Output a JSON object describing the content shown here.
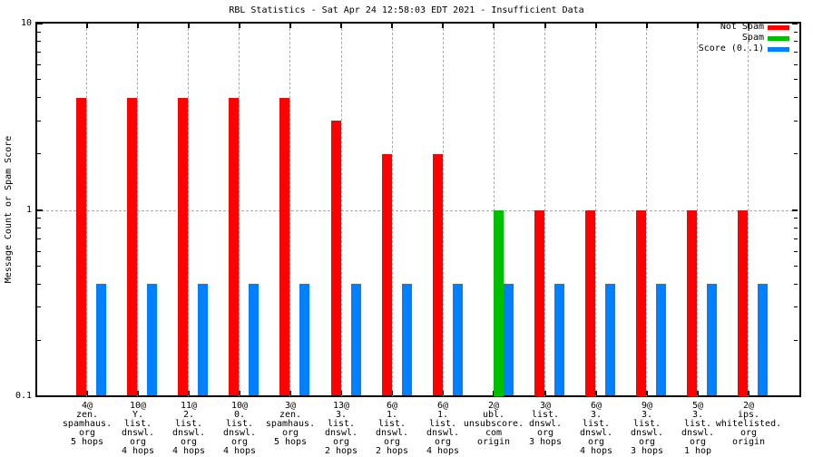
{
  "chart_data": {
    "type": "bar",
    "title": "RBL Statistics - Sat Apr 24 12:58:03 EDT 2021 - Insufficient Data",
    "ylabel": "Message Count or Spam Score",
    "y_scale": "log",
    "ylim": [
      0.1,
      10
    ],
    "y_ticks": [
      {
        "label": "10",
        "value": 10
      },
      {
        "label": "1",
        "value": 1
      },
      {
        "label": "0.1",
        "value": 0.1
      }
    ],
    "y_minor_ticks": [
      0.2,
      0.3,
      0.4,
      0.5,
      0.6,
      0.7,
      0.8,
      0.9,
      2,
      3,
      4,
      5,
      6,
      7,
      8,
      9
    ],
    "grid": true,
    "legend_position": "top-right-inside",
    "categories": [
      [
        "4@",
        "zen.",
        "spamhaus.",
        "org",
        "5 hops"
      ],
      [
        "10@",
        "Y.",
        "list.",
        "dnswl.",
        "org",
        "4 hops"
      ],
      [
        "11@",
        "2.",
        "list.",
        "dnswl.",
        "org",
        "4 hops"
      ],
      [
        "10@",
        "0.",
        "list.",
        "dnswl.",
        "org",
        "4 hops"
      ],
      [
        "3@",
        "zen.",
        "spamhaus.",
        "org",
        "5 hops"
      ],
      [
        "13@",
        "3.",
        "list.",
        "dnswl.",
        "org",
        "2 hops"
      ],
      [
        "6@",
        "1.",
        "list.",
        "dnswl.",
        "org",
        "2 hops"
      ],
      [
        "6@",
        "1.",
        "list.",
        "dnswl.",
        "org",
        "4 hops"
      ],
      [
        "2@",
        "ubl.",
        "unsubscore.",
        "com",
        "origin"
      ],
      [
        "3@",
        "list.",
        "dnswl.",
        "org",
        "3 hops"
      ],
      [
        "6@",
        "3.",
        "list.",
        "dnswl.",
        "org",
        "4 hops"
      ],
      [
        "9@",
        "3.",
        "list.",
        "dnswl.",
        "org",
        "3 hops"
      ],
      [
        "5@",
        "3.",
        "list.",
        "dnswl.",
        "org",
        "1 hop"
      ],
      [
        "2@",
        "ips.",
        "whitelisted.",
        "org",
        "origin"
      ]
    ],
    "series": [
      {
        "name": "Not Spam",
        "color": "#ff0000",
        "values": [
          4,
          4,
          4,
          4,
          4,
          3,
          2,
          2,
          null,
          1,
          1,
          1,
          1,
          1
        ]
      },
      {
        "name": "Spam",
        "color": "#00bf00",
        "values": [
          null,
          null,
          null,
          null,
          null,
          null,
          null,
          null,
          1,
          null,
          null,
          null,
          null,
          null
        ]
      },
      {
        "name": "Score (0..1)",
        "color": "#0080ff",
        "values": [
          0.4,
          0.4,
          0.4,
          0.4,
          0.4,
          0.4,
          0.4,
          0.4,
          0.4,
          0.4,
          0.4,
          0.4,
          0.4,
          0.4
        ]
      }
    ]
  }
}
